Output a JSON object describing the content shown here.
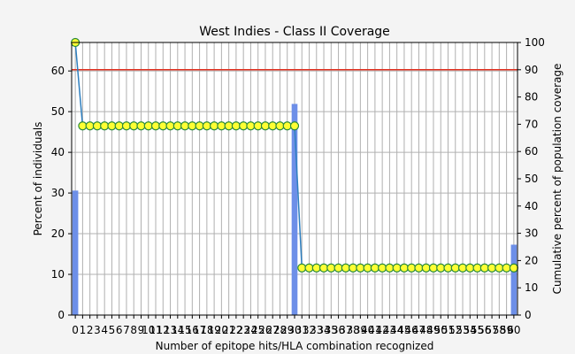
{
  "chart_data": {
    "type": "bar",
    "title": "West Indies - Class II Coverage",
    "xlabel": "Number of epitope hits/HLA combination recognized",
    "ylabel": "Percent of individuals",
    "y2label": "Cumulative percent of population coverage",
    "xlim": [
      -0.5,
      60.5
    ],
    "ylim": [
      0,
      67
    ],
    "y2lim": [
      0,
      100
    ],
    "yticks": [
      0,
      10,
      20,
      30,
      40,
      50,
      60
    ],
    "y2ticks": [
      0,
      10,
      20,
      30,
      40,
      50,
      60,
      70,
      80,
      90,
      100
    ],
    "x_ticks": [
      0,
      1,
      2,
      3,
      4,
      5,
      6,
      7,
      8,
      9,
      10,
      11,
      12,
      13,
      14,
      15,
      16,
      17,
      18,
      19,
      20,
      21,
      22,
      23,
      24,
      25,
      26,
      27,
      28,
      29,
      30,
      31,
      32,
      33,
      34,
      35,
      36,
      37,
      38,
      39,
      40,
      41,
      42,
      43,
      44,
      45,
      46,
      47,
      48,
      49,
      50,
      51,
      52,
      53,
      54,
      55,
      56,
      57,
      58,
      59,
      60
    ],
    "grid": true,
    "reference_line_y2": 90,
    "bars": [
      {
        "x": 0,
        "value": 30.6
      },
      {
        "x": 30,
        "value": 51.9
      },
      {
        "x": 60,
        "value": 17.3
      }
    ],
    "cumulative": {
      "x": [
        0,
        1,
        2,
        3,
        4,
        5,
        6,
        7,
        8,
        9,
        10,
        11,
        12,
        13,
        14,
        15,
        16,
        17,
        18,
        19,
        20,
        21,
        22,
        23,
        24,
        25,
        26,
        27,
        28,
        29,
        30,
        31,
        32,
        33,
        34,
        35,
        36,
        37,
        38,
        39,
        40,
        41,
        42,
        43,
        44,
        45,
        46,
        47,
        48,
        49,
        50,
        51,
        52,
        53,
        54,
        55,
        56,
        57,
        58,
        59,
        60
      ],
      "y2": [
        100,
        69.4,
        69.4,
        69.4,
        69.4,
        69.4,
        69.4,
        69.4,
        69.4,
        69.4,
        69.4,
        69.4,
        69.4,
        69.4,
        69.4,
        69.4,
        69.4,
        69.4,
        69.4,
        69.4,
        69.4,
        69.4,
        69.4,
        69.4,
        69.4,
        69.4,
        69.4,
        69.4,
        69.4,
        69.4,
        69.4,
        17.3,
        17.3,
        17.3,
        17.3,
        17.3,
        17.3,
        17.3,
        17.3,
        17.3,
        17.3,
        17.3,
        17.3,
        17.3,
        17.3,
        17.3,
        17.3,
        17.3,
        17.3,
        17.3,
        17.3,
        17.3,
        17.3,
        17.3,
        17.3,
        17.3,
        17.3,
        17.3,
        17.3,
        17.3,
        17.3
      ]
    },
    "colors": {
      "bar": "#6d8fe8",
      "line": "#2e7fbf",
      "marker_fill": "#ffff33",
      "marker_edge": "#2a8a3a",
      "reference_line": "#e03020",
      "grid": "#b0b0b0",
      "plot_bg": "#ffffff"
    }
  }
}
